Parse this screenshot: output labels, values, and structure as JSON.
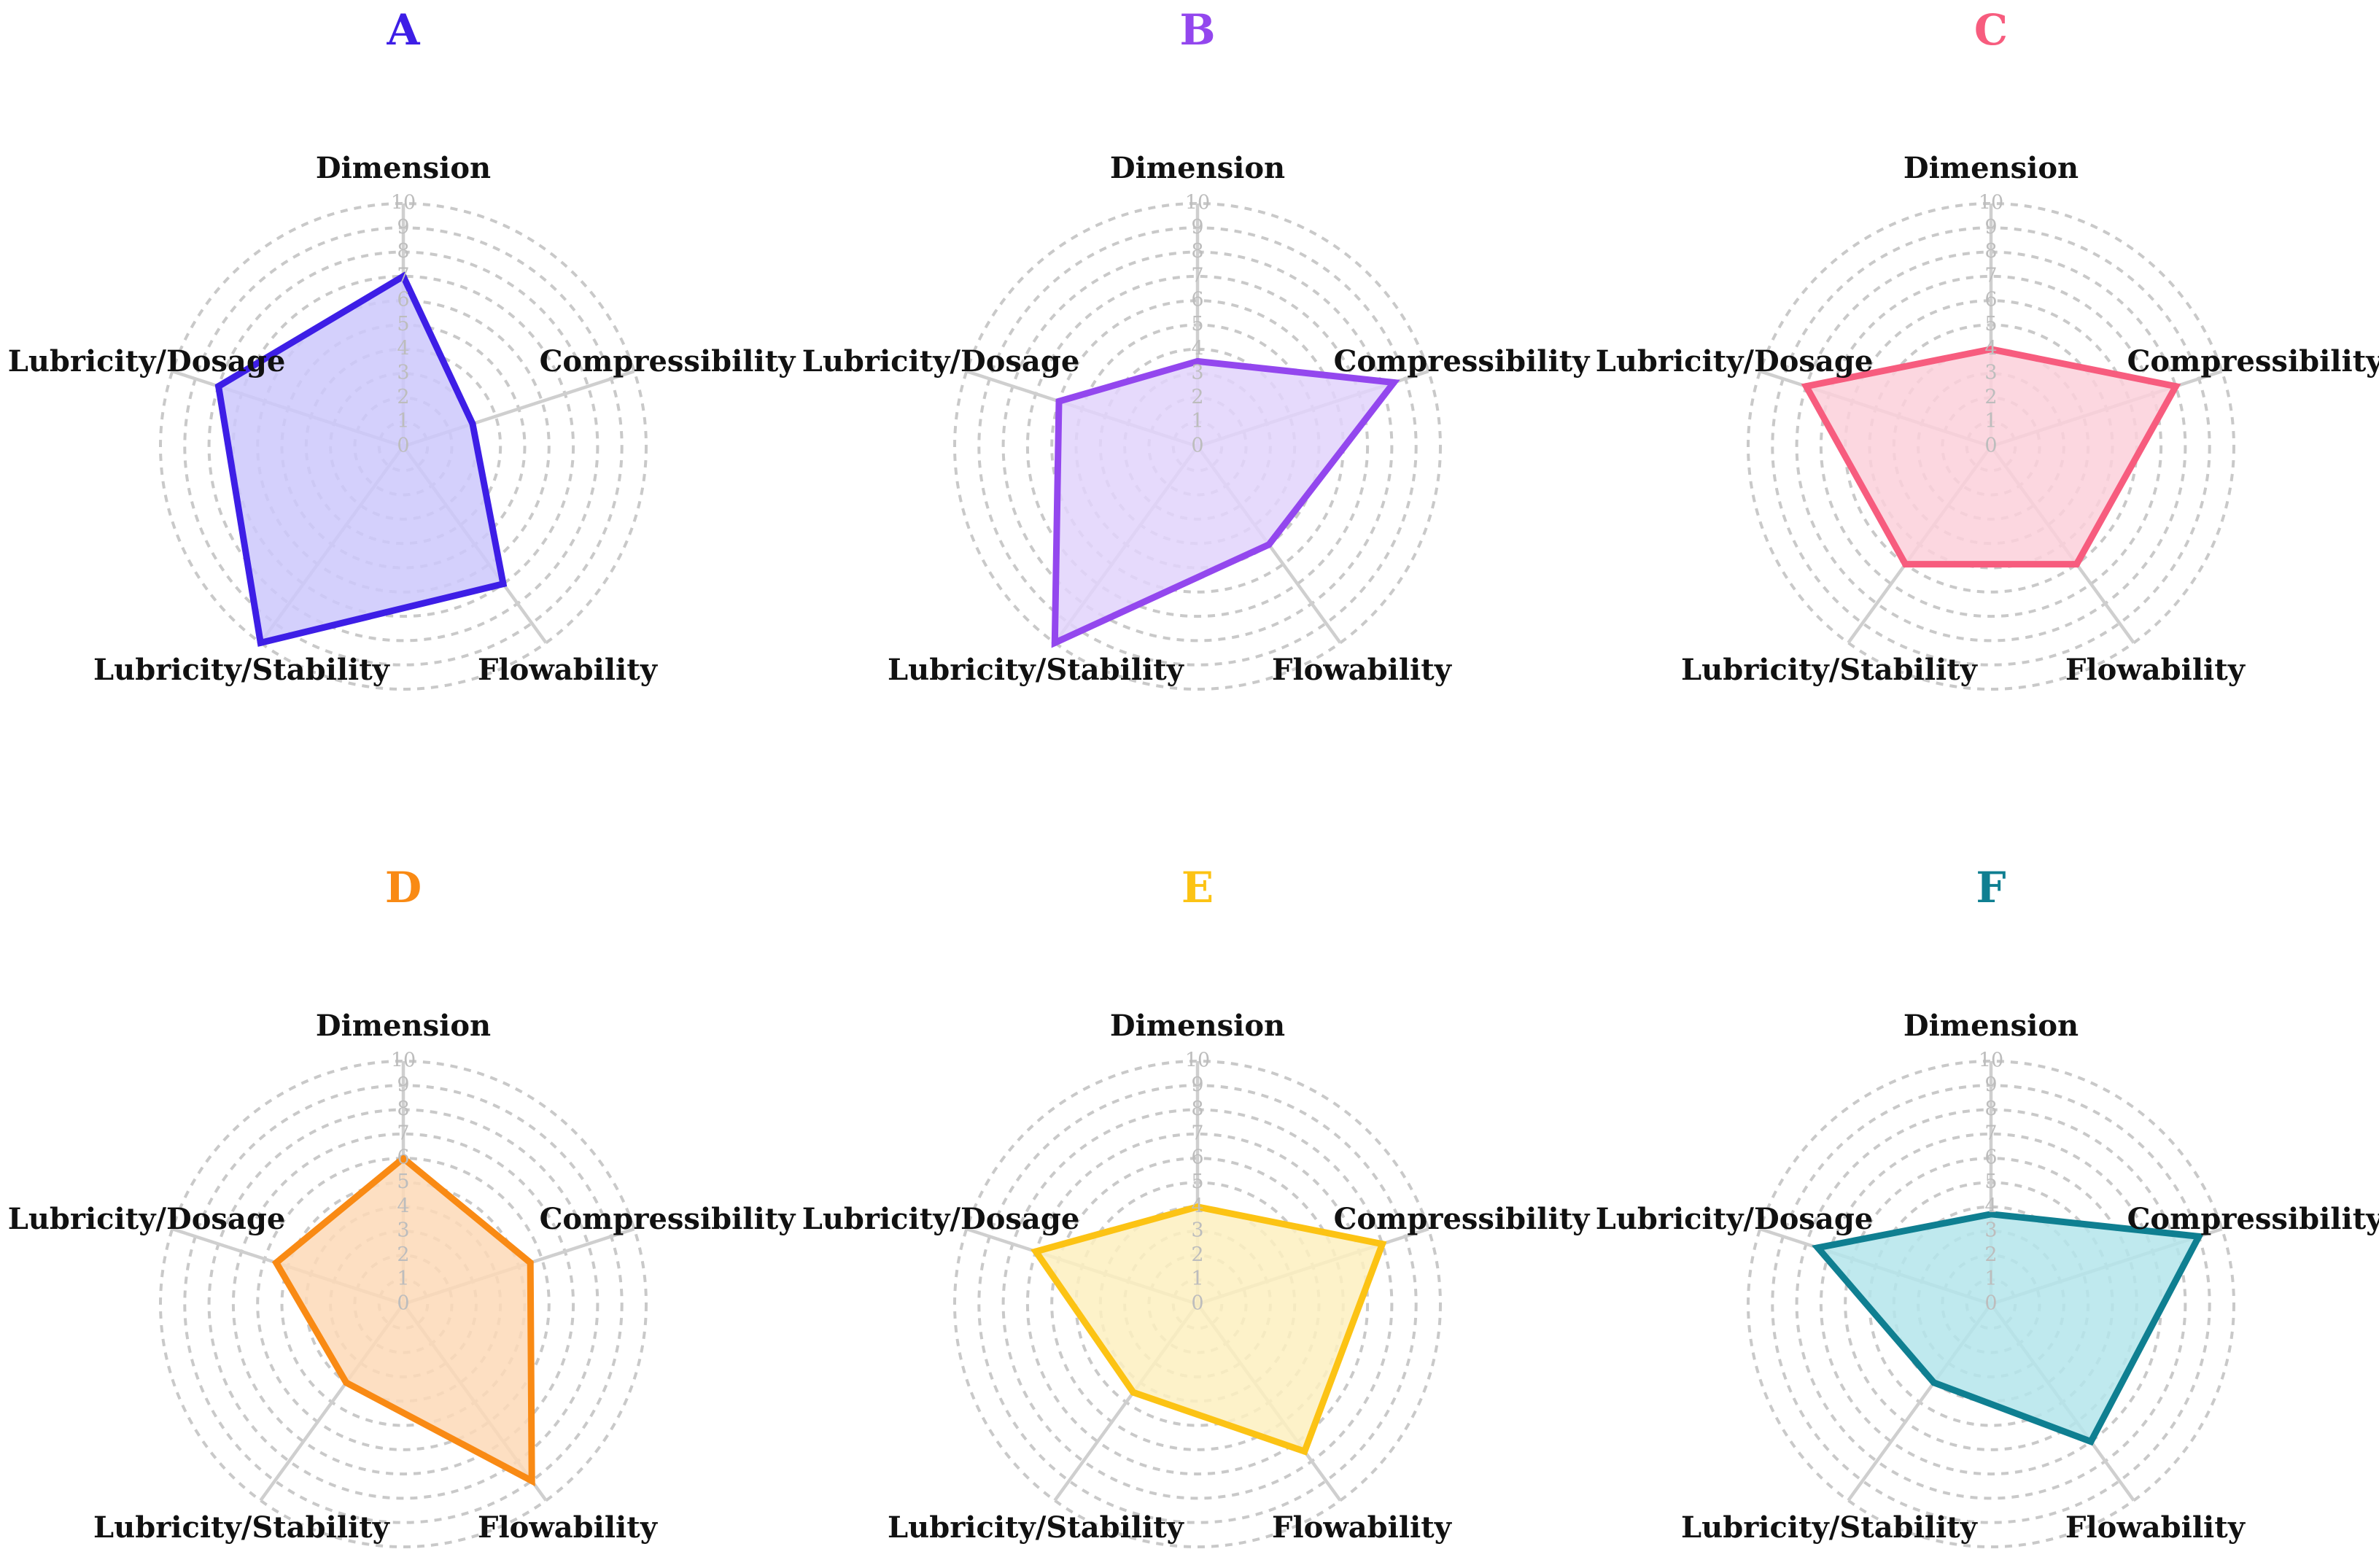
{
  "chart_data": [
    {
      "type": "radar",
      "title": "A",
      "color": "#3d1ee6",
      "fill": "#cdc8fb",
      "axes": [
        "Dimension",
        "Compressibility",
        "Flowability",
        "Lubricity/Stability",
        "Lubricity/Dosage"
      ],
      "values": [
        7,
        3,
        7,
        10,
        8
      ],
      "range": [
        0,
        10
      ],
      "ticks": [
        0,
        1,
        2,
        3,
        4,
        5,
        6,
        7,
        8,
        9,
        10
      ]
    },
    {
      "type": "radar",
      "title": "B",
      "color": "#9347ee",
      "fill": "#e2d3fb",
      "axes": [
        "Dimension",
        "Compressibility",
        "Flowability",
        "Lubricity/Stability",
        "Lubricity/Dosage"
      ],
      "values": [
        3.5,
        8.5,
        5,
        10,
        6
      ],
      "range": [
        0,
        10
      ],
      "ticks": [
        0,
        1,
        2,
        3,
        4,
        5,
        6,
        7,
        8,
        9,
        10
      ]
    },
    {
      "type": "radar",
      "title": "C",
      "color": "#f75c7e",
      "fill": "#fcd0da",
      "axes": [
        "Dimension",
        "Compressibility",
        "Flowability",
        "Lubricity/Stability",
        "Lubricity/Dosage"
      ],
      "values": [
        4,
        8,
        6,
        6,
        8
      ],
      "range": [
        0,
        10
      ],
      "ticks": [
        0,
        1,
        2,
        3,
        4,
        5,
        6,
        7,
        8,
        9,
        10
      ]
    },
    {
      "type": "radar",
      "title": "D",
      "color": "#f98a14",
      "fill": "#fdd9b7",
      "axes": [
        "Dimension",
        "Compressibility",
        "Flowability",
        "Lubricity/Stability",
        "Lubricity/Dosage"
      ],
      "values": [
        6,
        5.5,
        9,
        4,
        5.5
      ],
      "range": [
        0,
        10
      ],
      "ticks": [
        0,
        1,
        2,
        3,
        4,
        5,
        6,
        7,
        8,
        9,
        10
      ]
    },
    {
      "type": "radar",
      "title": "E",
      "color": "#fcc314",
      "fill": "#fdf0bf",
      "axes": [
        "Dimension",
        "Compressibility",
        "Flowability",
        "Lubricity/Stability",
        "Lubricity/Dosage"
      ],
      "values": [
        4,
        8,
        7.5,
        4.5,
        7
      ],
      "range": [
        0,
        10
      ],
      "ticks": [
        0,
        1,
        2,
        3,
        4,
        5,
        6,
        7,
        8,
        9,
        10
      ]
    },
    {
      "type": "radar",
      "title": "F",
      "color": "#0f7f91",
      "fill": "#b4e5eb",
      "axes": [
        "Dimension",
        "Compressibility",
        "Flowability",
        "Lubricity/Stability",
        "Lubricity/Dosage"
      ],
      "values": [
        3.7,
        9,
        7,
        4,
        7.5
      ],
      "range": [
        0,
        10
      ],
      "ticks": [
        0,
        1,
        2,
        3,
        4,
        5,
        6,
        7,
        8,
        9,
        10
      ]
    }
  ]
}
